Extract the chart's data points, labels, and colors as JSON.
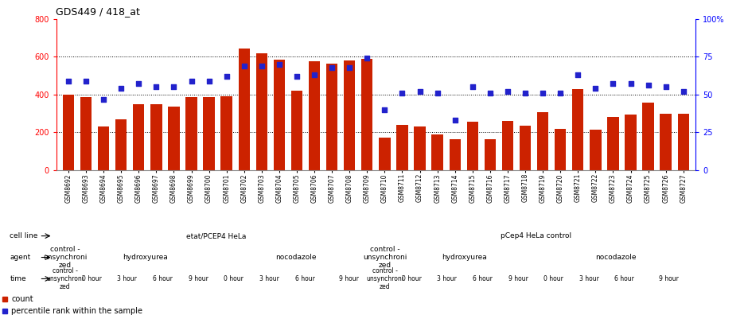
{
  "title": "GDS449 / 418_at",
  "bar_values": [
    400,
    385,
    230,
    270,
    350,
    350,
    335,
    385,
    385,
    390,
    645,
    620,
    585,
    420,
    575,
    565,
    580,
    590,
    170,
    240,
    230,
    190,
    165,
    255,
    165,
    260,
    235,
    305,
    220,
    430,
    215,
    280,
    295,
    355,
    300,
    300
  ],
  "blue_values": [
    59,
    59,
    47,
    54,
    57,
    55,
    55,
    59,
    59,
    62,
    69,
    69,
    70,
    62,
    63,
    68,
    68,
    74,
    40,
    51,
    52,
    51,
    33,
    55,
    51,
    52,
    51,
    51,
    51,
    63,
    54,
    57,
    57,
    56,
    55,
    52
  ],
  "sample_labels": [
    "GSM8692",
    "GSM8693",
    "GSM8694",
    "GSM8695",
    "GSM8696",
    "GSM8697",
    "GSM8698",
    "GSM8699",
    "GSM8700",
    "GSM8701",
    "GSM8702",
    "GSM8703",
    "GSM8704",
    "GSM8705",
    "GSM8706",
    "GSM8707",
    "GSM8708",
    "GSM8709",
    "GSM8710",
    "GSM8711",
    "GSM8712",
    "GSM8713",
    "GSM8714",
    "GSM8715",
    "GSM8716",
    "GSM8717",
    "GSM8718",
    "GSM8719",
    "GSM8720",
    "GSM8721",
    "GSM8722",
    "GSM8723",
    "GSM8724",
    "GSM8725",
    "GSM8726",
    "GSM8727"
  ],
  "ylim_left": [
    0,
    800
  ],
  "ylim_right": [
    0,
    100
  ],
  "yticks_left": [
    0,
    200,
    400,
    600,
    800
  ],
  "ytick_labels_left": [
    "0",
    "200",
    "400",
    "600",
    "800"
  ],
  "yticks_right": [
    0,
    25,
    50,
    75,
    100
  ],
  "ytick_labels_right": [
    "0",
    "25",
    "50",
    "75",
    "100%"
  ],
  "bar_color": "#CC2200",
  "blue_color": "#2222CC",
  "bg_color": "#FFFFFF",
  "cell_line_data": [
    {
      "label": "etat/PCEP4 HeLa",
      "start": 0,
      "end": 18,
      "color": "#88DD88"
    },
    {
      "label": "pCep4 HeLa control",
      "start": 18,
      "end": 36,
      "color": "#66CC66"
    }
  ],
  "agent_data": [
    {
      "label": "control -\nunsynchroni\nzed",
      "start": 0,
      "end": 1,
      "color": "#AAAADD"
    },
    {
      "label": "hydroxyurea",
      "start": 1,
      "end": 9,
      "color": "#9999CC"
    },
    {
      "label": "nocodazole",
      "start": 9,
      "end": 18,
      "color": "#8888BB"
    },
    {
      "label": "control -\nunsynchroni\nzed",
      "start": 18,
      "end": 19,
      "color": "#AAAADD"
    },
    {
      "label": "hydroxyurea",
      "start": 19,
      "end": 27,
      "color": "#9999CC"
    },
    {
      "label": "nocodazole",
      "start": 27,
      "end": 36,
      "color": "#8888BB"
    }
  ],
  "time_data": [
    {
      "label": "control -\nunsynchroni\nzed",
      "start": 0,
      "end": 1,
      "color": "#FFBBBB"
    },
    {
      "label": "0 hour",
      "start": 1,
      "end": 3,
      "color": "#FFDDDD"
    },
    {
      "label": "3 hour",
      "start": 3,
      "end": 5,
      "color": "#FFAAAA"
    },
    {
      "label": "6 hour",
      "start": 5,
      "end": 7,
      "color": "#FF7777"
    },
    {
      "label": "9 hour",
      "start": 7,
      "end": 9,
      "color": "#CC4444"
    },
    {
      "label": "0 hour",
      "start": 9,
      "end": 11,
      "color": "#FFDDDD"
    },
    {
      "label": "3 hour",
      "start": 11,
      "end": 13,
      "color": "#FFAAAA"
    },
    {
      "label": "6 hour",
      "start": 13,
      "end": 15,
      "color": "#FF7777"
    },
    {
      "label": "9 hour",
      "start": 15,
      "end": 18,
      "color": "#CC4444"
    },
    {
      "label": "control -\nunsynchroni\nzed",
      "start": 18,
      "end": 19,
      "color": "#FFBBBB"
    },
    {
      "label": "0 hour",
      "start": 19,
      "end": 21,
      "color": "#FFDDDD"
    },
    {
      "label": "3 hour",
      "start": 21,
      "end": 23,
      "color": "#FFAAAA"
    },
    {
      "label": "6 hour",
      "start": 23,
      "end": 25,
      "color": "#FF7777"
    },
    {
      "label": "9 hour",
      "start": 25,
      "end": 27,
      "color": "#CC4444"
    },
    {
      "label": "0 hour",
      "start": 27,
      "end": 29,
      "color": "#FFDDDD"
    },
    {
      "label": "3 hour",
      "start": 29,
      "end": 31,
      "color": "#FFAAAA"
    },
    {
      "label": "6 hour",
      "start": 31,
      "end": 33,
      "color": "#FF7777"
    },
    {
      "label": "9 hour",
      "start": 33,
      "end": 36,
      "color": "#CC4444"
    }
  ],
  "label_col_color": "#DDDDDD",
  "row_labels": [
    "cell line",
    "agent",
    "time"
  ]
}
